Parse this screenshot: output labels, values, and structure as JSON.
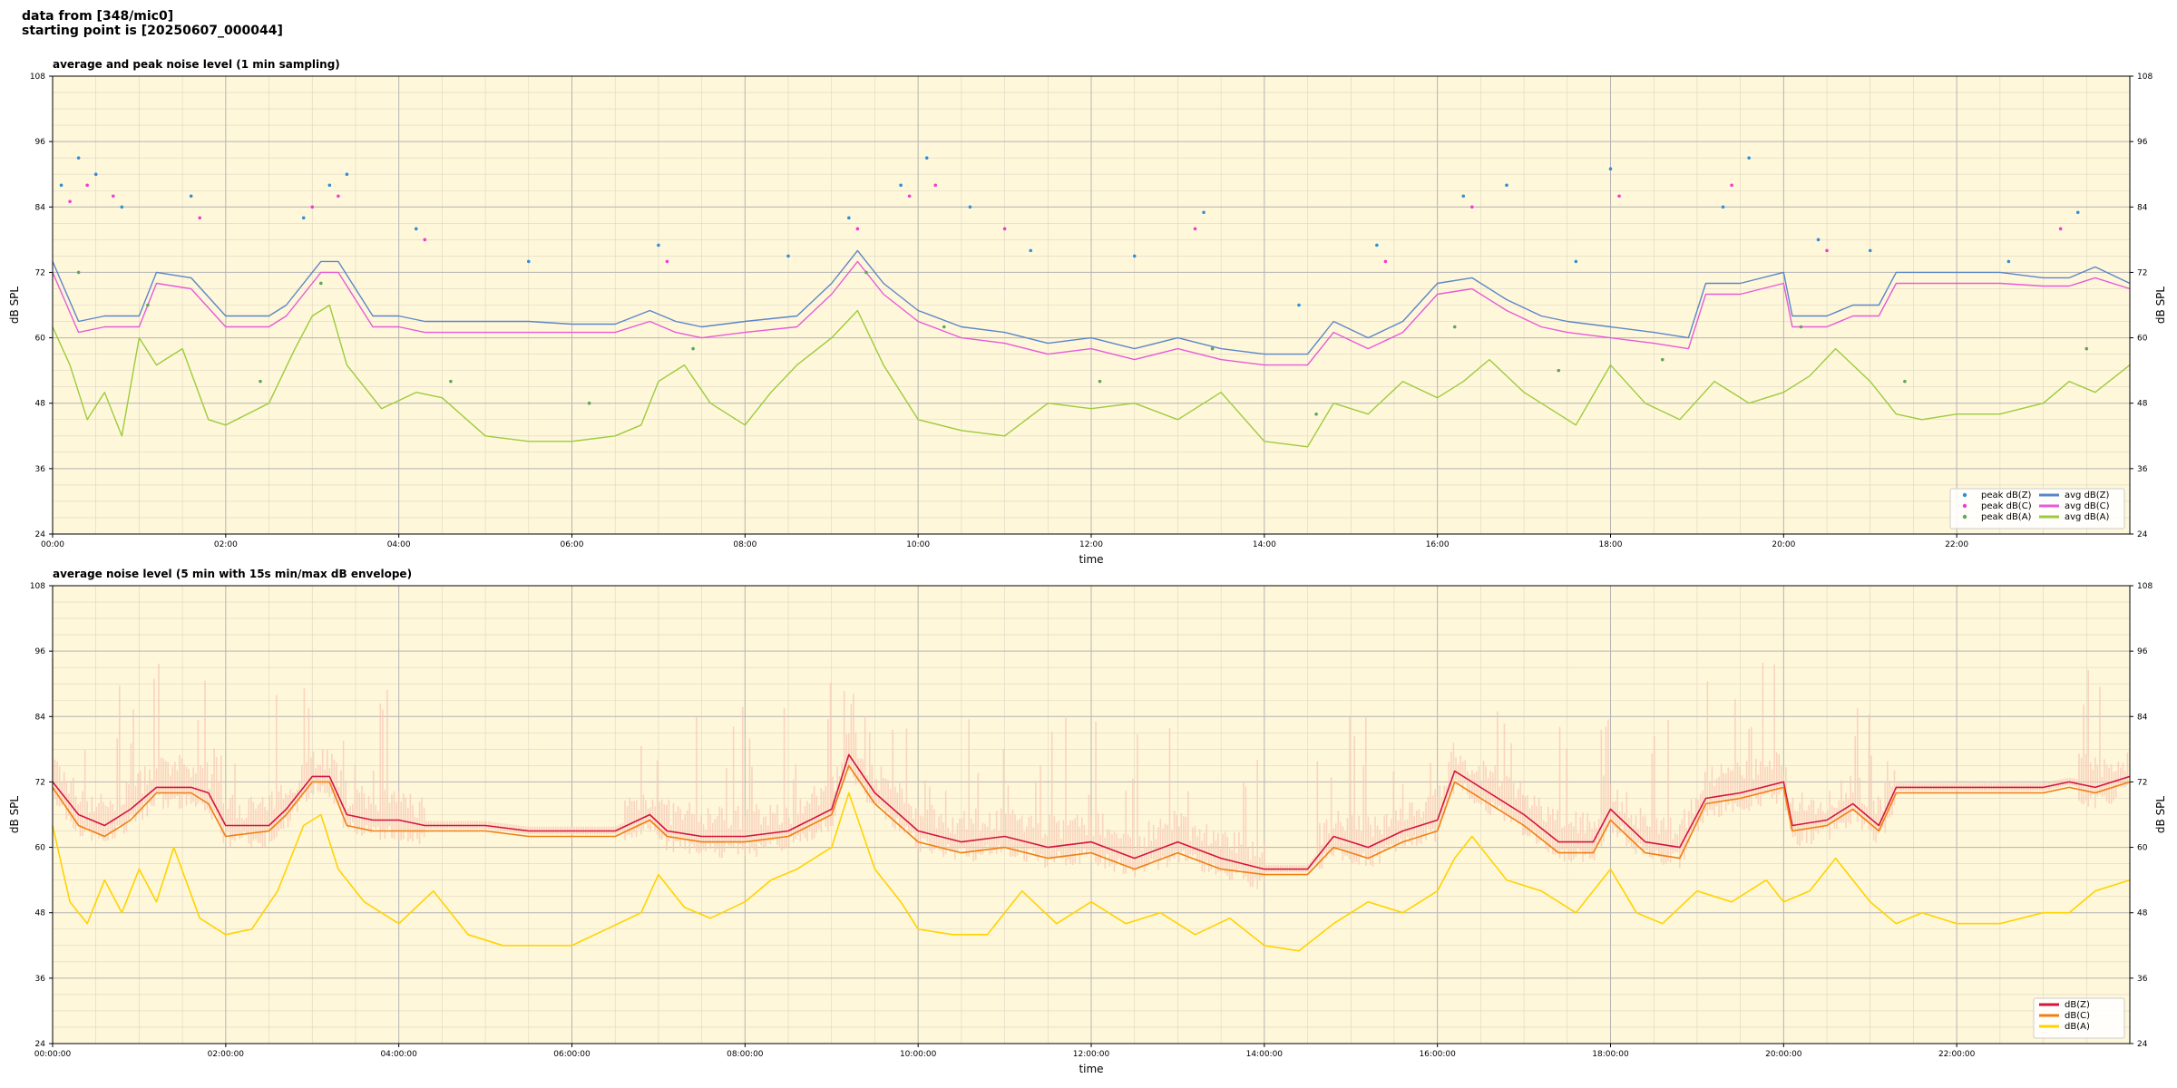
{
  "header": {
    "line1": "data from [348/mic0]",
    "line2": "starting point is [20250607_000044]"
  },
  "colors": {
    "plot_bg": "#fff7da",
    "grid_major": "#b4b4b4",
    "grid_minor": "#ddd6c2",
    "peak_z": "#2f8fd8",
    "peak_c": "#f23bd0",
    "peak_a": "#5ea65a",
    "avg_z": "#5b86c8",
    "avg_c": "#e65bd8",
    "avg_a": "#9ccc3c",
    "env_z": "#d4143e",
    "env_c": "#f07f12",
    "env_a": "#ffd300",
    "envelope_fill": "#f7c8b4"
  },
  "chart_data": [
    {
      "type": "line",
      "title": "average and peak noise level (1 min sampling)",
      "xlabel": "time",
      "ylabel": "dB SPL",
      "xlim_hours": [
        0,
        24
      ],
      "ylim": [
        24,
        108
      ],
      "yticks": [
        24,
        36,
        48,
        60,
        72,
        84,
        96,
        108
      ],
      "xtick_labels": [
        "00:00",
        "02:00",
        "04:00",
        "06:00",
        "08:00",
        "10:00",
        "12:00",
        "14:00",
        "16:00",
        "18:00",
        "20:00",
        "22:00"
      ],
      "grid": true,
      "legend_position": "lower-right",
      "legend": [
        "peak dB(Z)",
        "peak dB(C)",
        "peak dB(A)",
        "avg dB(Z)",
        "avg dB(C)",
        "avg dB(A)"
      ],
      "series": [
        {
          "name": "avg dB(Z)",
          "x_hours": [
            0,
            0.3,
            0.6,
            1.0,
            1.2,
            1.6,
            2.0,
            2.5,
            2.7,
            3.1,
            3.3,
            3.7,
            4.0,
            4.3,
            5.0,
            5.5,
            6.0,
            6.5,
            6.9,
            7.2,
            7.5,
            8.0,
            8.6,
            9.0,
            9.3,
            9.6,
            10.0,
            10.5,
            11.0,
            11.5,
            12.0,
            12.5,
            13.0,
            13.5,
            14.0,
            14.5,
            14.8,
            15.2,
            15.6,
            16.0,
            16.4,
            16.8,
            17.2,
            17.5,
            18.0,
            18.5,
            18.9,
            19.1,
            19.5,
            20.0,
            20.1,
            20.5,
            20.8,
            21.1,
            21.3,
            21.5,
            22.0,
            22.5,
            23.0,
            23.3,
            23.6,
            24.0
          ],
          "values": [
            74,
            63,
            64,
            64,
            72,
            71,
            64,
            64,
            66,
            74,
            74,
            64,
            64,
            63,
            63,
            63,
            62.5,
            62.5,
            65,
            63,
            62,
            63,
            64,
            70,
            76,
            70,
            65,
            62,
            61,
            59,
            60,
            58,
            60,
            58,
            57,
            57,
            63,
            60,
            63,
            70,
            71,
            67,
            64,
            63,
            62,
            61,
            60,
            70,
            70,
            72,
            64,
            64,
            66,
            66,
            72,
            72,
            72,
            72,
            71,
            71,
            73,
            70
          ]
        },
        {
          "name": "avg dB(C)",
          "x_hours": [
            0,
            0.3,
            0.6,
            1.0,
            1.2,
            1.6,
            2.0,
            2.5,
            2.7,
            3.1,
            3.3,
            3.7,
            4.0,
            4.3,
            5.0,
            5.5,
            6.0,
            6.5,
            6.9,
            7.2,
            7.5,
            8.0,
            8.6,
            9.0,
            9.3,
            9.6,
            10.0,
            10.5,
            11.0,
            11.5,
            12.0,
            12.5,
            13.0,
            13.5,
            14.0,
            14.5,
            14.8,
            15.2,
            15.6,
            16.0,
            16.4,
            16.8,
            17.2,
            17.5,
            18.0,
            18.5,
            18.9,
            19.1,
            19.5,
            20.0,
            20.1,
            20.5,
            20.8,
            21.1,
            21.3,
            21.5,
            22.0,
            22.5,
            23.0,
            23.3,
            23.6,
            24.0
          ],
          "values": [
            72,
            61,
            62,
            62,
            70,
            69,
            62,
            62,
            64,
            72,
            72,
            62,
            62,
            61,
            61,
            61,
            61,
            61,
            63,
            61,
            60,
            61,
            62,
            68,
            74,
            68,
            63,
            60,
            59,
            57,
            58,
            56,
            58,
            56,
            55,
            55,
            61,
            58,
            61,
            68,
            69,
            65,
            62,
            61,
            60,
            59,
            58,
            68,
            68,
            70,
            62,
            62,
            64,
            64,
            70,
            70,
            70,
            70,
            69.5,
            69.5,
            71,
            69
          ]
        },
        {
          "name": "avg dB(A)",
          "x_hours": [
            0,
            0.2,
            0.4,
            0.6,
            0.8,
            1.0,
            1.2,
            1.5,
            1.8,
            2.0,
            2.5,
            2.8,
            3.0,
            3.2,
            3.4,
            3.8,
            4.2,
            4.5,
            5.0,
            5.5,
            6.0,
            6.5,
            6.8,
            7.0,
            7.3,
            7.6,
            8.0,
            8.3,
            8.6,
            9.0,
            9.3,
            9.6,
            10.0,
            10.5,
            11.0,
            11.5,
            12.0,
            12.5,
            13.0,
            13.5,
            14.0,
            14.5,
            14.8,
            15.2,
            15.6,
            16.0,
            16.3,
            16.6,
            17.0,
            17.3,
            17.6,
            18.0,
            18.4,
            18.8,
            19.2,
            19.6,
            20.0,
            20.3,
            20.6,
            21.0,
            21.3,
            21.6,
            22.0,
            22.5,
            23.0,
            23.3,
            23.6,
            24.0
          ],
          "values": [
            62,
            55,
            45,
            50,
            42,
            60,
            55,
            58,
            45,
            44,
            48,
            58,
            64,
            66,
            55,
            47,
            50,
            49,
            42,
            41,
            41,
            42,
            44,
            52,
            55,
            48,
            44,
            50,
            55,
            60,
            65,
            55,
            45,
            43,
            42,
            48,
            47,
            48,
            45,
            50,
            41,
            40,
            48,
            46,
            52,
            49,
            52,
            56,
            50,
            47,
            44,
            55,
            48,
            45,
            52,
            48,
            50,
            53,
            58,
            52,
            46,
            45,
            46,
            46,
            48,
            52,
            50,
            55
          ]
        },
        {
          "name": "peak dB(Z)",
          "x_hours": [
            0.1,
            0.3,
            0.5,
            0.8,
            1.6,
            2.9,
            3.2,
            3.4,
            4.2,
            5.5,
            7.0,
            8.5,
            9.2,
            9.8,
            10.1,
            10.6,
            11.3,
            12.5,
            13.3,
            14.4,
            15.3,
            16.3,
            16.8,
            17.6,
            18.0,
            19.3,
            19.6,
            20.4,
            21.0,
            22.6,
            23.4
          ],
          "values": [
            88,
            93,
            90,
            84,
            86,
            82,
            88,
            90,
            80,
            74,
            77,
            75,
            82,
            88,
            93,
            84,
            76,
            75,
            83,
            66,
            77,
            86,
            88,
            74,
            91,
            84,
            93,
            78,
            76,
            74,
            83
          ]
        },
        {
          "name": "peak dB(C)",
          "x_hours": [
            0.2,
            0.4,
            0.7,
            1.7,
            3.0,
            3.3,
            4.3,
            7.1,
            9.3,
            9.9,
            10.2,
            11.0,
            13.2,
            15.4,
            16.4,
            18.1,
            19.4,
            20.5,
            23.2
          ],
          "values": [
            85,
            88,
            86,
            82,
            84,
            86,
            78,
            74,
            80,
            86,
            88,
            80,
            80,
            74,
            84,
            86,
            88,
            76,
            80
          ]
        },
        {
          "name": "peak dB(A)",
          "x_hours": [
            0.3,
            1.1,
            2.4,
            3.1,
            4.6,
            6.2,
            7.4,
            9.4,
            10.3,
            12.1,
            13.4,
            14.6,
            16.2,
            17.4,
            18.6,
            20.2,
            21.4,
            23.5
          ],
          "values": [
            72,
            66,
            52,
            70,
            52,
            48,
            58,
            72,
            62,
            52,
            58,
            46,
            62,
            54,
            56,
            62,
            52,
            58
          ]
        }
      ]
    },
    {
      "type": "line",
      "title": "average noise level (5 min with 15s min/max dB envelope)",
      "xlabel": "time",
      "ylabel": "dB SPL",
      "xlim_hours": [
        0,
        24
      ],
      "ylim": [
        24,
        108
      ],
      "yticks": [
        24,
        36,
        48,
        60,
        72,
        84,
        96,
        108
      ],
      "xtick_labels": [
        "00:00:00",
        "02:00:00",
        "04:00:00",
        "06:00:00",
        "08:00:00",
        "10:00:00",
        "12:00:00",
        "14:00:00",
        "16:00:00",
        "18:00:00",
        "20:00:00",
        "22:00:00"
      ],
      "grid": true,
      "legend_position": "lower-right",
      "legend": [
        "dB(Z)",
        "dB(C)",
        "dB(A)"
      ],
      "series": [
        {
          "name": "dB(Z)",
          "x_hours": [
            0,
            0.3,
            0.6,
            0.9,
            1.2,
            1.6,
            1.8,
            2.0,
            2.5,
            2.7,
            3.0,
            3.2,
            3.4,
            3.7,
            4.0,
            4.3,
            5.0,
            5.5,
            6.0,
            6.5,
            6.9,
            7.1,
            7.5,
            8.0,
            8.5,
            9.0,
            9.2,
            9.5,
            10.0,
            10.5,
            11.0,
            11.5,
            12.0,
            12.5,
            13.0,
            13.5,
            14.0,
            14.5,
            14.8,
            15.2,
            15.6,
            16.0,
            16.2,
            16.6,
            17.0,
            17.4,
            17.8,
            18.0,
            18.4,
            18.8,
            19.1,
            19.5,
            20.0,
            20.1,
            20.5,
            20.8,
            21.1,
            21.3,
            21.6,
            22.0,
            22.5,
            23.0,
            23.3,
            23.6,
            24.0
          ],
          "values": [
            72,
            66,
            64,
            67,
            71,
            71,
            70,
            64,
            64,
            67,
            73,
            73,
            66,
            65,
            65,
            64,
            64,
            63,
            63,
            63,
            66,
            63,
            62,
            62,
            63,
            67,
            77,
            70,
            63,
            61,
            62,
            60,
            61,
            58,
            61,
            58,
            56,
            56,
            62,
            60,
            63,
            65,
            74,
            70,
            66,
            61,
            61,
            67,
            61,
            60,
            69,
            70,
            72,
            64,
            65,
            68,
            64,
            71,
            71,
            71,
            71,
            71,
            72,
            71,
            73
          ]
        },
        {
          "name": "dB(C)",
          "x_hours": [
            0,
            0.3,
            0.6,
            0.9,
            1.2,
            1.6,
            1.8,
            2.0,
            2.5,
            2.7,
            3.0,
            3.2,
            3.4,
            3.7,
            4.0,
            4.3,
            5.0,
            5.5,
            6.0,
            6.5,
            6.9,
            7.1,
            7.5,
            8.0,
            8.5,
            9.0,
            9.2,
            9.5,
            10.0,
            10.5,
            11.0,
            11.5,
            12.0,
            12.5,
            13.0,
            13.5,
            14.0,
            14.5,
            14.8,
            15.2,
            15.6,
            16.0,
            16.2,
            16.6,
            17.0,
            17.4,
            17.8,
            18.0,
            18.4,
            18.8,
            19.1,
            19.5,
            20.0,
            20.1,
            20.5,
            20.8,
            21.1,
            21.3,
            21.6,
            22.0,
            22.5,
            23.0,
            23.3,
            23.6,
            24.0
          ],
          "values": [
            71,
            64,
            62,
            65,
            70,
            70,
            68,
            62,
            63,
            66,
            72,
            72,
            64,
            63,
            63,
            63,
            63,
            62,
            62,
            62,
            65,
            62,
            61,
            61,
            62,
            66,
            75,
            68,
            61,
            59,
            60,
            58,
            59,
            56,
            59,
            56,
            55,
            55,
            60,
            58,
            61,
            63,
            72,
            68,
            64,
            59,
            59,
            65,
            59,
            58,
            68,
            69,
            71,
            63,
            64,
            67,
            63,
            70,
            70,
            70,
            70,
            70,
            71,
            70,
            72
          ]
        },
        {
          "name": "dB(A)",
          "x_hours": [
            0,
            0.2,
            0.4,
            0.6,
            0.8,
            1.0,
            1.2,
            1.4,
            1.7,
            2.0,
            2.3,
            2.6,
            2.9,
            3.1,
            3.3,
            3.6,
            4.0,
            4.4,
            4.8,
            5.2,
            5.6,
            6.0,
            6.4,
            6.8,
            7.0,
            7.3,
            7.6,
            8.0,
            8.3,
            8.6,
            9.0,
            9.2,
            9.5,
            9.8,
            10.0,
            10.4,
            10.8,
            11.2,
            11.6,
            12.0,
            12.4,
            12.8,
            13.2,
            13.6,
            14.0,
            14.4,
            14.8,
            15.2,
            15.6,
            16.0,
            16.2,
            16.4,
            16.8,
            17.2,
            17.6,
            18.0,
            18.3,
            18.6,
            19.0,
            19.4,
            19.8,
            20.0,
            20.3,
            20.6,
            21.0,
            21.3,
            21.6,
            22.0,
            22.5,
            23.0,
            23.3,
            23.6,
            24.0
          ],
          "values": [
            64,
            50,
            46,
            54,
            48,
            56,
            50,
            60,
            47,
            44,
            45,
            52,
            64,
            66,
            56,
            50,
            46,
            52,
            44,
            42,
            42,
            42,
            45,
            48,
            55,
            49,
            47,
            50,
            54,
            56,
            60,
            70,
            56,
            50,
            45,
            44,
            44,
            52,
            46,
            50,
            46,
            48,
            44,
            47,
            42,
            41,
            46,
            50,
            48,
            52,
            58,
            62,
            54,
            52,
            48,
            56,
            48,
            46,
            52,
            50,
            54,
            50,
            52,
            58,
            50,
            46,
            48,
            46,
            46,
            48,
            48,
            52,
            54
          ]
        }
      ]
    }
  ]
}
